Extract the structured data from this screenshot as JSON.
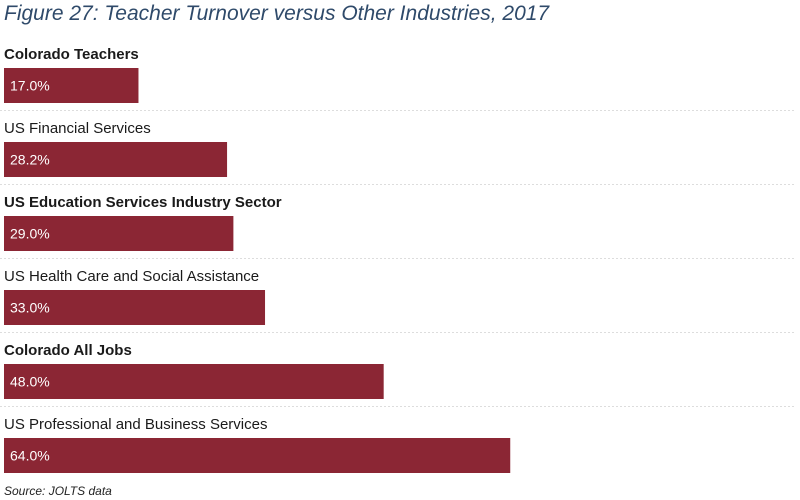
{
  "figure": {
    "title": "Figure 27: Teacher Turnover versus Other Industries, 2017",
    "source": "Source: JOLTS data"
  },
  "colors": {
    "bar": "#8b2634",
    "divider": "#dddddd",
    "title": "#2f4a6a"
  },
  "chart_data": {
    "type": "bar",
    "orientation": "horizontal",
    "title": "Figure 27: Teacher Turnover versus Other Industries, 2017",
    "xlabel": "",
    "ylabel": "",
    "grid": false,
    "xlim": [
      0,
      100
    ],
    "categories": [
      "Colorado Teachers",
      "US Financial Services",
      "US Education Services Industry Sector",
      "US Health Care and Social Assistance",
      "Colorado All Jobs",
      "US Professional and Business Services"
    ],
    "emphasized": [
      true,
      false,
      true,
      false,
      true,
      false
    ],
    "values": [
      17.0,
      28.2,
      29.0,
      33.0,
      48.0,
      64.0
    ],
    "value_labels": [
      "17.0%",
      "28.2%",
      "29.0%",
      "33.0%",
      "48.0%",
      "64.0%"
    ]
  }
}
